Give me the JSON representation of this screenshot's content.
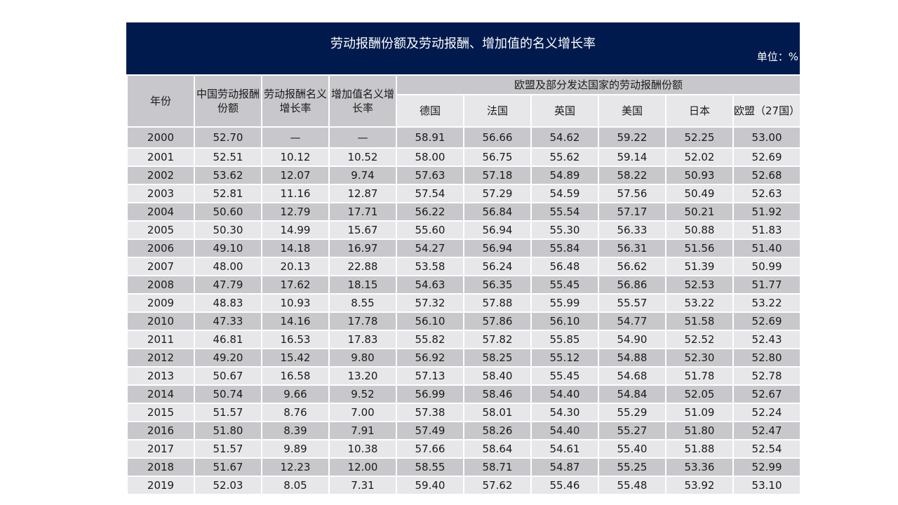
{
  "title": "劳动报酬份额及劳动报酬、增加值的名义增长率",
  "unit": "单位：%",
  "headers": {
    "year": "年份",
    "china_share": "中国劳动报酬份额",
    "labor_growth": "劳动报酬名义增长率",
    "va_growth": "增加值名义增长率",
    "group": "欧盟及部分发达国家的劳动报酬份额",
    "countries": [
      "德国",
      "法国",
      "英国",
      "美国",
      "日本",
      "欧盟（27国）"
    ]
  },
  "rows": [
    [
      "2000",
      "52.70",
      "—",
      "—",
      "58.91",
      "56.66",
      "54.62",
      "59.22",
      "52.25",
      "53.00"
    ],
    [
      "2001",
      "52.51",
      "10.12",
      "10.52",
      "58.00",
      "56.75",
      "55.62",
      "59.14",
      "52.02",
      "52.69"
    ],
    [
      "2002",
      "53.62",
      "12.07",
      "9.74",
      "57.63",
      "57.18",
      "54.89",
      "58.22",
      "50.93",
      "52.68"
    ],
    [
      "2003",
      "52.81",
      "11.16",
      "12.87",
      "57.54",
      "57.29",
      "54.59",
      "57.56",
      "50.49",
      "52.63"
    ],
    [
      "2004",
      "50.60",
      "12.79",
      "17.71",
      "56.22",
      "56.84",
      "55.54",
      "57.17",
      "50.21",
      "51.92"
    ],
    [
      "2005",
      "50.30",
      "14.99",
      "15.67",
      "55.60",
      "56.94",
      "55.30",
      "56.33",
      "50.88",
      "51.83"
    ],
    [
      "2006",
      "49.10",
      "14.18",
      "16.97",
      "54.27",
      "56.94",
      "55.84",
      "56.31",
      "51.56",
      "51.40"
    ],
    [
      "2007",
      "48.00",
      "20.13",
      "22.88",
      "53.58",
      "56.24",
      "56.48",
      "56.62",
      "51.39",
      "50.99"
    ],
    [
      "2008",
      "47.79",
      "17.62",
      "18.15",
      "54.63",
      "56.35",
      "55.45",
      "56.86",
      "52.53",
      "51.77"
    ],
    [
      "2009",
      "48.83",
      "10.93",
      "8.55",
      "57.32",
      "57.88",
      "55.99",
      "55.57",
      "53.22",
      "53.22"
    ],
    [
      "2010",
      "47.33",
      "14.16",
      "17.78",
      "56.10",
      "57.86",
      "56.10",
      "54.77",
      "51.58",
      "52.69"
    ],
    [
      "2011",
      "46.81",
      "16.53",
      "17.83",
      "55.82",
      "57.82",
      "55.85",
      "54.90",
      "52.52",
      "52.43"
    ],
    [
      "2012",
      "49.20",
      "15.42",
      "9.80",
      "56.92",
      "58.25",
      "55.12",
      "54.88",
      "52.30",
      "52.80"
    ],
    [
      "2013",
      "50.67",
      "16.58",
      "13.20",
      "57.13",
      "58.40",
      "55.45",
      "54.68",
      "51.78",
      "52.78"
    ],
    [
      "2014",
      "50.74",
      "9.66",
      "9.52",
      "56.99",
      "58.46",
      "54.40",
      "54.84",
      "52.05",
      "52.67"
    ],
    [
      "2015",
      "51.57",
      "8.76",
      "7.00",
      "57.38",
      "58.01",
      "54.30",
      "55.29",
      "51.09",
      "52.24"
    ],
    [
      "2016",
      "51.80",
      "8.39",
      "7.91",
      "57.49",
      "58.26",
      "54.40",
      "55.27",
      "51.80",
      "52.47"
    ],
    [
      "2017",
      "51.57",
      "9.89",
      "10.38",
      "57.66",
      "58.64",
      "54.61",
      "55.40",
      "51.88",
      "52.54"
    ],
    [
      "2018",
      "51.67",
      "12.23",
      "12.00",
      "58.55",
      "58.71",
      "54.87",
      "55.25",
      "53.36",
      "52.99"
    ],
    [
      "2019",
      "52.03",
      "8.05",
      "7.31",
      "59.40",
      "57.62",
      "55.46",
      "55.48",
      "53.92",
      "53.10"
    ]
  ]
}
